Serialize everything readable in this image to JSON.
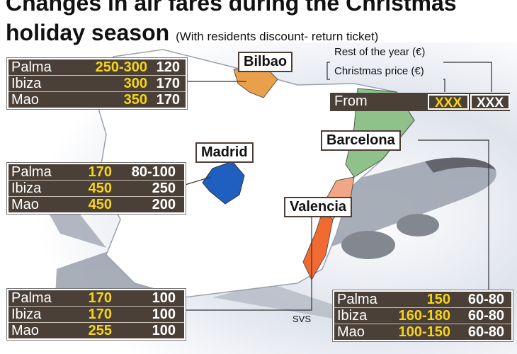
{
  "title": {
    "line1": "Changes in air fares during the Christmas",
    "line2_bold": "holiday season",
    "line2_sub": "(With residents discount- return ticket)"
  },
  "legend": {
    "rest_label": "Rest of the year (€)",
    "christmas_label": "Christmas price (€)",
    "from_label": "From",
    "christmas_sample": "XXX",
    "rest_sample": "XXX"
  },
  "origins": {
    "bilbao": {
      "name": "Bilbao",
      "routes": [
        {
          "dest": "Palma",
          "christmas": "250-300",
          "rest": "120"
        },
        {
          "dest": "Ibiza",
          "christmas": "300",
          "rest": "170"
        },
        {
          "dest": "Mao",
          "christmas": "350",
          "rest": "170"
        }
      ]
    },
    "madrid": {
      "name": "Madrid",
      "routes": [
        {
          "dest": "Palma",
          "christmas": "170",
          "rest": "80-100"
        },
        {
          "dest": "Ibiza",
          "christmas": "450",
          "rest": "250"
        },
        {
          "dest": "Mao",
          "christmas": "450",
          "rest": "200"
        }
      ]
    },
    "valencia": {
      "name": "Valencia",
      "routes": [
        {
          "dest": "Palma",
          "christmas": "170",
          "rest": "100"
        },
        {
          "dest": "Ibiza",
          "christmas": "170",
          "rest": "100"
        },
        {
          "dest": "Mao",
          "christmas": "255",
          "rest": "100"
        }
      ]
    },
    "barcelona": {
      "name": "Barcelona",
      "routes": [
        {
          "dest": "Palma",
          "christmas": "150",
          "rest": "60-80"
        },
        {
          "dest": "Ibiza",
          "christmas": "160-180",
          "rest": "60-80"
        },
        {
          "dest": "Mao",
          "christmas": "100-150",
          "rest": "60-80"
        }
      ]
    }
  },
  "credit": "SVS",
  "colors": {
    "bilbao_region": "#e9a04a",
    "madrid_region": "#1f5fbf",
    "barcelona_region": "#8fc28a",
    "valencia_region": "#f1a686",
    "valencia_south": "#f06a32",
    "panel": "#4a4038",
    "christmas_value": "#f7d417"
  }
}
